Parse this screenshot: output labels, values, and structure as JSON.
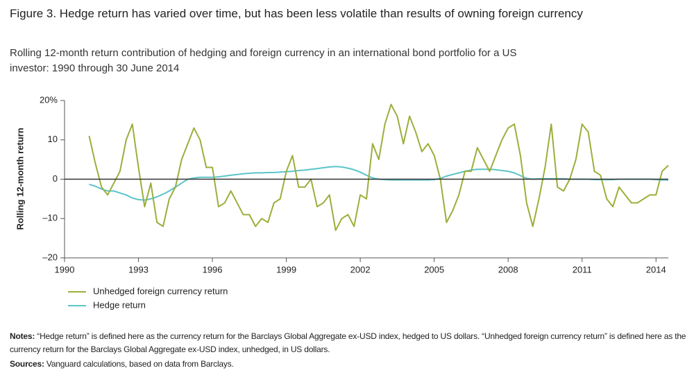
{
  "chart_data": {
    "type": "line",
    "title": "Figure 3. Hedge return has varied over time, but has been less volatile than results of owning foreign currency",
    "subtitle": "Rolling 12-month return contribution of hedging and foreign currency in an international bond portfolio for a US investor: 1990 through 30 June 2014",
    "y_label": "Rolling 12-month return",
    "xlim": [
      1990,
      2014.5
    ],
    "xticks": [
      1990,
      1993,
      1996,
      1999,
      2002,
      2005,
      2008,
      2011,
      2014
    ],
    "ylim": [
      -20,
      20
    ],
    "yticks": [
      {
        "value": 20,
        "label": "20%"
      },
      10,
      0,
      {
        "value": -10,
        "label": "–10"
      },
      {
        "value": -20,
        "label": "–20"
      }
    ],
    "zero_line": true,
    "x": [
      1991,
      1991.25,
      1991.5,
      1991.75,
      1992,
      1992.25,
      1992.5,
      1992.75,
      1993,
      1993.25,
      1993.5,
      1993.75,
      1994,
      1994.25,
      1994.5,
      1994.75,
      1995,
      1995.25,
      1995.5,
      1995.75,
      1996,
      1996.25,
      1996.5,
      1996.75,
      1997,
      1997.25,
      1997.5,
      1997.75,
      1998,
      1998.25,
      1998.5,
      1998.75,
      1999,
      1999.25,
      1999.5,
      1999.75,
      2000,
      2000.25,
      2000.5,
      2000.75,
      2001,
      2001.25,
      2001.5,
      2001.75,
      2002,
      2002.25,
      2002.5,
      2002.75,
      2003,
      2003.25,
      2003.5,
      2003.75,
      2004,
      2004.25,
      2004.5,
      2004.75,
      2005,
      2005.25,
      2005.5,
      2005.75,
      2006,
      2006.25,
      2006.5,
      2006.75,
      2007,
      2007.25,
      2007.5,
      2007.75,
      2008,
      2008.25,
      2008.5,
      2008.75,
      2009,
      2009.25,
      2009.5,
      2009.75,
      2010,
      2010.25,
      2010.5,
      2010.75,
      2011,
      2011.25,
      2011.5,
      2011.75,
      2012,
      2012.25,
      2012.5,
      2012.75,
      2013,
      2013.25,
      2013.5,
      2013.75,
      2014,
      2014.25,
      2014.5
    ],
    "series": [
      {
        "name": "Unhedged foreign currency return",
        "color": "#9aaf3a",
        "values": [
          11,
          4,
          -2,
          -4,
          -1,
          2,
          10,
          14,
          3,
          -7,
          -1,
          -11,
          -12,
          -5,
          -2,
          5,
          9,
          13,
          10,
          3,
          3,
          -7,
          -6,
          -3,
          -6,
          -9,
          -9,
          -12,
          -10,
          -11,
          -6,
          -5,
          2,
          6,
          -2,
          -2,
          0,
          -7,
          -6,
          -4,
          -13,
          -10,
          -9,
          -12,
          -4,
          -5,
          9,
          5,
          14,
          19,
          16,
          9,
          16,
          12,
          7,
          9,
          6,
          0,
          -11,
          -8,
          -4,
          2,
          2,
          8,
          5,
          2,
          6,
          10,
          13,
          14,
          6,
          -6,
          -12,
          -5,
          3,
          14,
          -2,
          -3,
          0,
          5,
          14,
          12,
          2,
          1,
          -5,
          -7,
          -2,
          -4,
          -6,
          -6,
          -5,
          -4,
          -4,
          2,
          3.5
        ]
      },
      {
        "name": "Hedge return",
        "color": "#5bc4c9",
        "values": [
          -1.3,
          -1.8,
          -2.5,
          -3,
          -3,
          -3.5,
          -4,
          -4.8,
          -5.2,
          -5.3,
          -5,
          -4.5,
          -3.8,
          -3,
          -2,
          -1,
          0,
          0.3,
          0.5,
          0.5,
          0.5,
          0.6,
          0.8,
          1,
          1.2,
          1.4,
          1.5,
          1.6,
          1.6,
          1.7,
          1.7,
          1.8,
          1.9,
          2,
          2.2,
          2.3,
          2.5,
          2.7,
          2.9,
          3.1,
          3.2,
          3.1,
          2.8,
          2.4,
          1.8,
          1,
          0.3,
          0,
          -0.1,
          -0.2,
          -0.2,
          -0.2,
          -0.2,
          -0.2,
          -0.2,
          -0.2,
          -0.1,
          0.2,
          0.8,
          1.2,
          1.6,
          2,
          2.3,
          2.5,
          2.5,
          2.5,
          2.4,
          2.2,
          2,
          1.6,
          0.9,
          0.2,
          0,
          0.1,
          0.1,
          0.1,
          0.1,
          0.1,
          0,
          0,
          0,
          0,
          -0.1,
          -0.1,
          -0.1,
          -0.1,
          0,
          0,
          0,
          0,
          0,
          0,
          -0.1,
          -0.2,
          -0.2
        ]
      }
    ],
    "notes_label": "Notes:",
    "notes": "“Hedge return” is defined here as the currency return for the Barclays Global Aggregate ex-USD index, hedged to US dollars. “Unhedged foreign currency return” is defined here as the currency return for the Barclays Global Aggregate ex-USD index, unhedged, in US dollars.",
    "sources_label": "Sources:",
    "sources": "Vanguard calculations, based on data from Barclays."
  }
}
